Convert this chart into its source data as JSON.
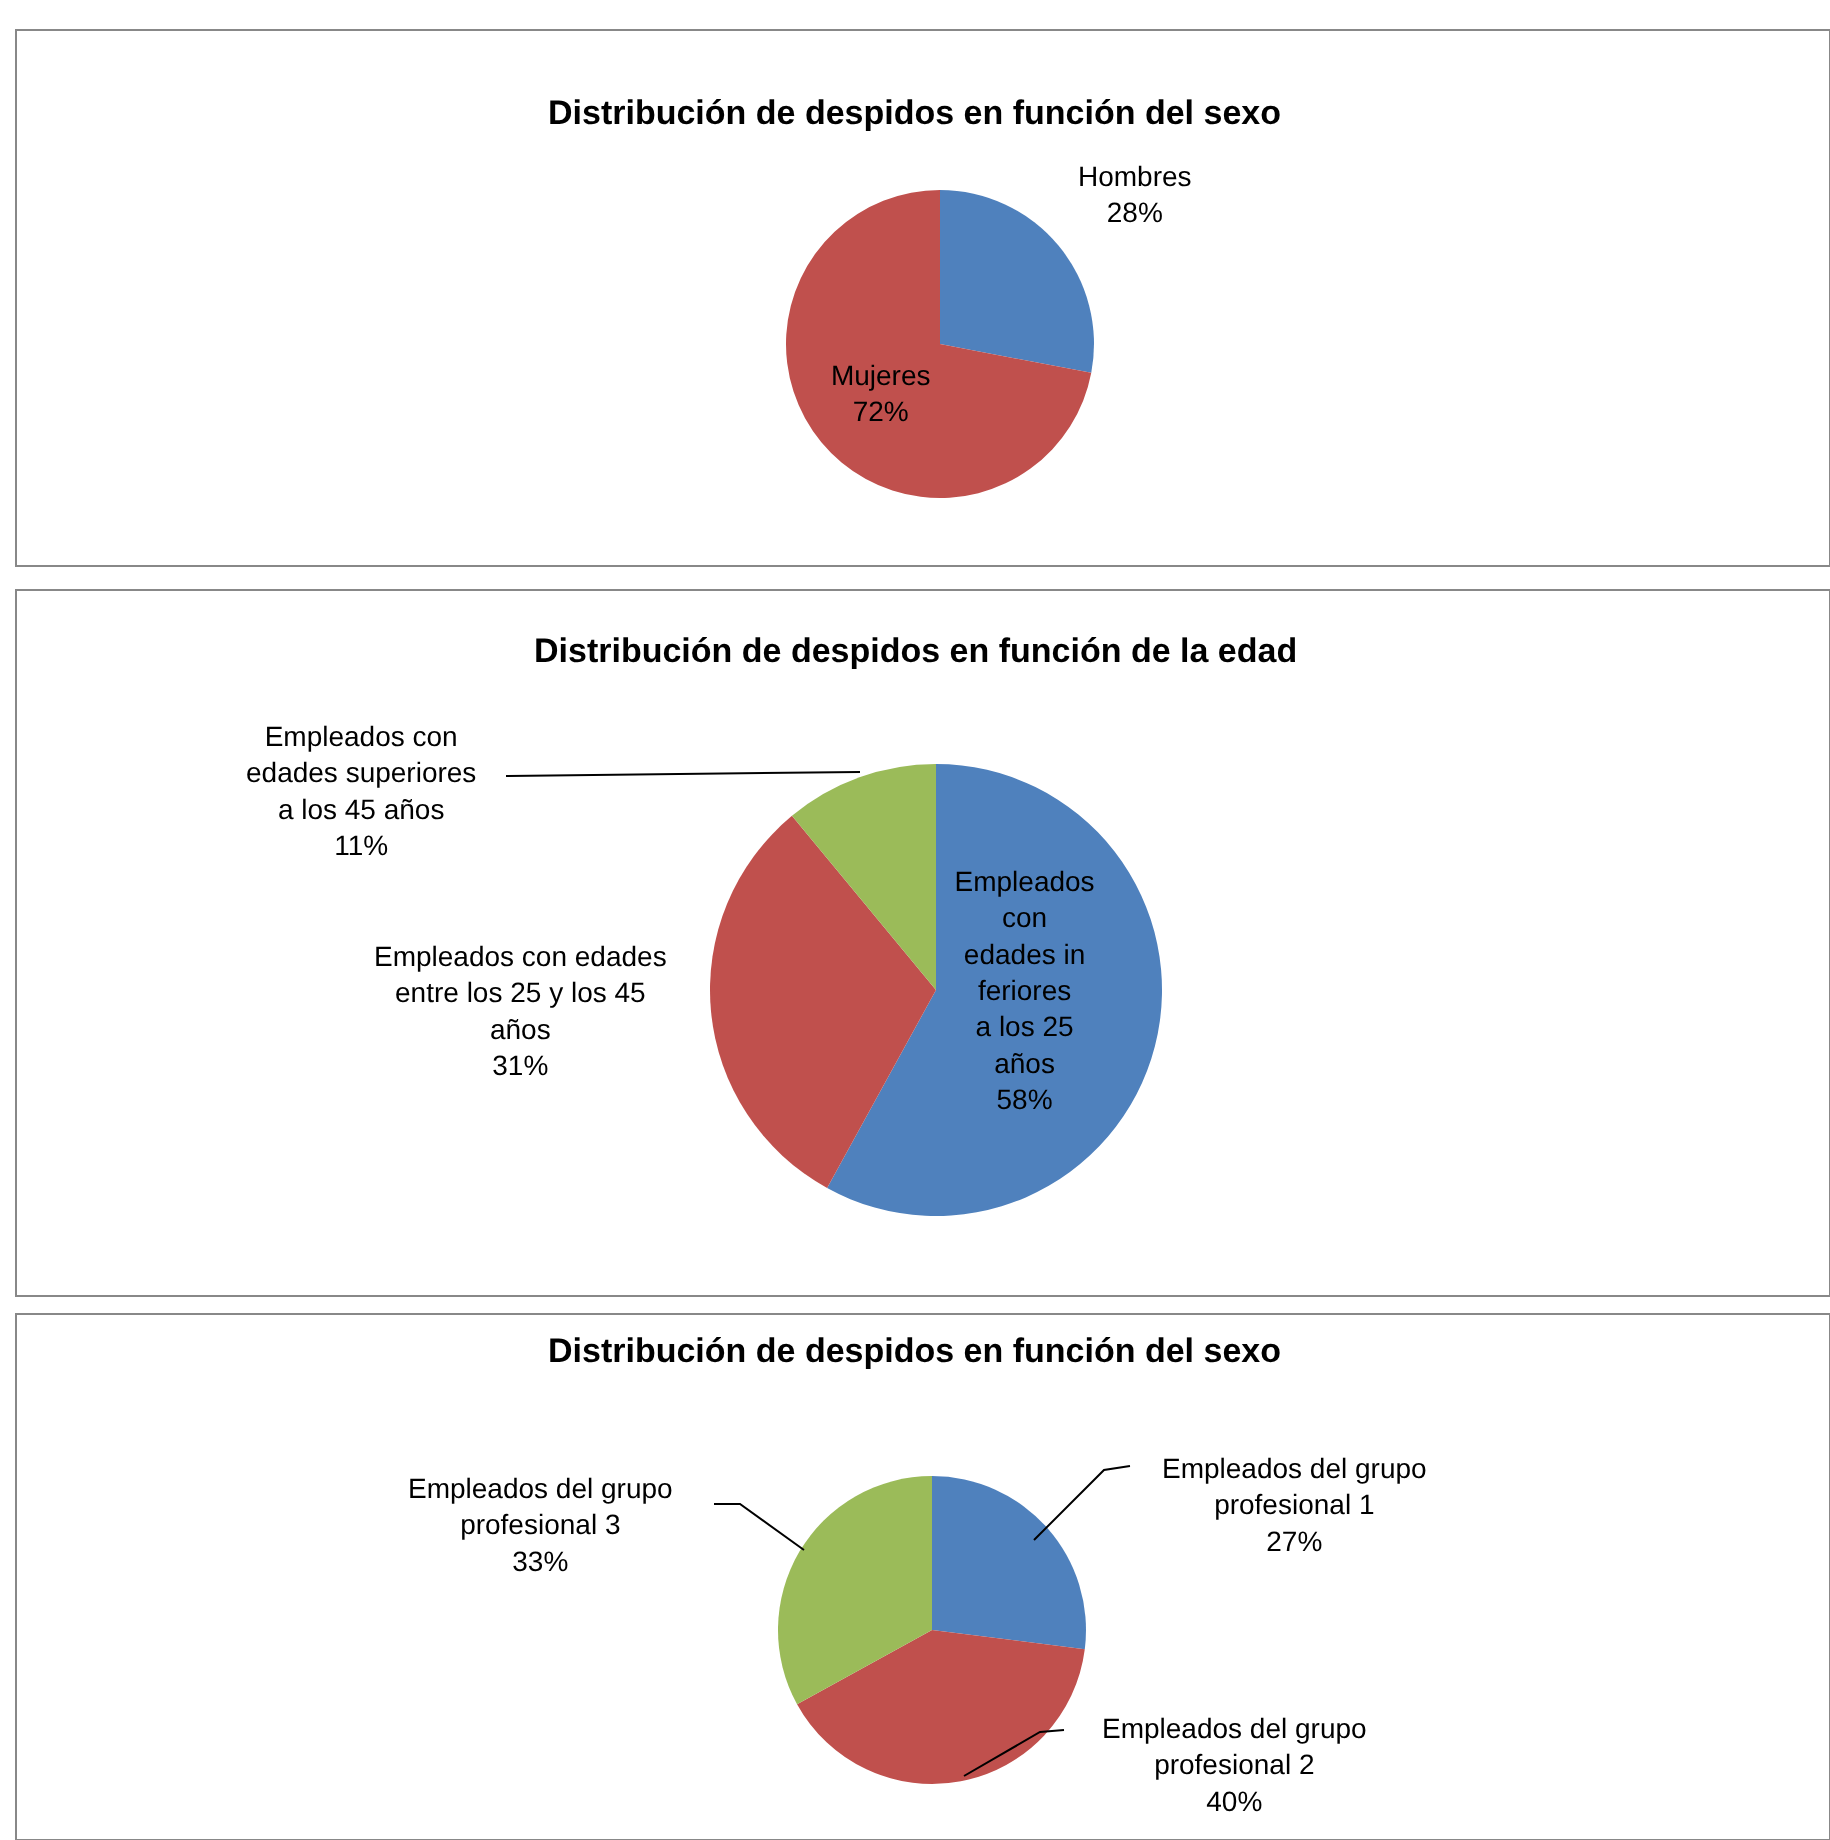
{
  "chart_data": [
    {
      "type": "pie",
      "title": "Distribución de despidos en función del sexo",
      "categories": [
        "Hombres",
        "Mujeres"
      ],
      "values": [
        28,
        72
      ],
      "value_labels": [
        "28%",
        "72%"
      ],
      "colors": [
        "#4f81bd",
        "#c0504d"
      ]
    },
    {
      "type": "pie",
      "title": "Distribución de despidos en función de la edad",
      "categories": [
        "Empleados con edades inferiores a los 25 años",
        "Empleados con edades entre los 25 y los 45 años",
        "Empleados con edades superiores a los 45 años"
      ],
      "values": [
        58,
        31,
        11
      ],
      "value_labels": [
        "58%",
        "31%",
        "11%"
      ],
      "colors": [
        "#4f81bd",
        "#c0504d",
        "#9bbb59"
      ]
    },
    {
      "type": "pie",
      "title": "Distribución de despidos en función del sexo",
      "categories": [
        "Empleados del grupo profesional 1",
        "Empleados del grupo profesional 2",
        "Empleados del grupo profesional 3"
      ],
      "values": [
        27,
        40,
        33
      ],
      "value_labels": [
        "27%",
        "40%",
        "33%"
      ],
      "colors": [
        "#4f81bd",
        "#c0504d",
        "#9bbb59"
      ]
    }
  ]
}
